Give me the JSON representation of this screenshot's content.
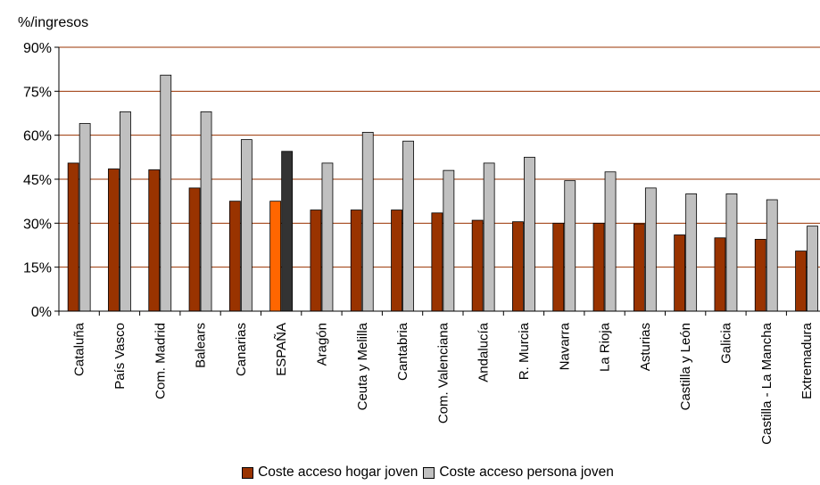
{
  "chart_data": {
    "type": "bar",
    "unit_label": "%/ingresos",
    "categories": [
      "Cataluña",
      "País Vasco",
      "Com. Madrid",
      "Balears",
      "Canarias",
      "ESPAÑA",
      "Aragón",
      "Ceuta y Melilla",
      "Cantabria",
      "Com. Valenciana",
      "Andalucía",
      "R. Murcia",
      "Navarra",
      "La Rioja",
      "Asturias",
      "Castilla y León",
      "Galicia",
      "Castilla - La Mancha",
      "Extremadura"
    ],
    "series": [
      {
        "name": "Coste acceso hogar joven",
        "color": "#993300",
        "highlight_color": "#ff6600",
        "values": [
          50.5,
          48.5,
          48.2,
          42,
          37.5,
          37.5,
          34.5,
          34.5,
          34.5,
          33.5,
          31,
          30.5,
          30,
          30,
          29.8,
          26,
          25,
          24.5,
          20.5
        ]
      },
      {
        "name": "Coste acceso persona joven",
        "color": "#c0c0c0",
        "highlight_color": "#333333",
        "values": [
          64,
          68,
          80.5,
          68,
          58.5,
          54.5,
          50.5,
          61,
          58,
          48,
          50.5,
          52.5,
          44.5,
          47.5,
          42,
          40,
          40,
          38,
          29
        ]
      }
    ],
    "highlight_category": "ESPAÑA",
    "y_ticks": [
      "0%",
      "15%",
      "30%",
      "45%",
      "60%",
      "75%",
      "90%"
    ],
    "ylim": [
      0,
      90
    ],
    "grid": true,
    "gridline_color": "#993300",
    "legend_position": "bottom"
  }
}
